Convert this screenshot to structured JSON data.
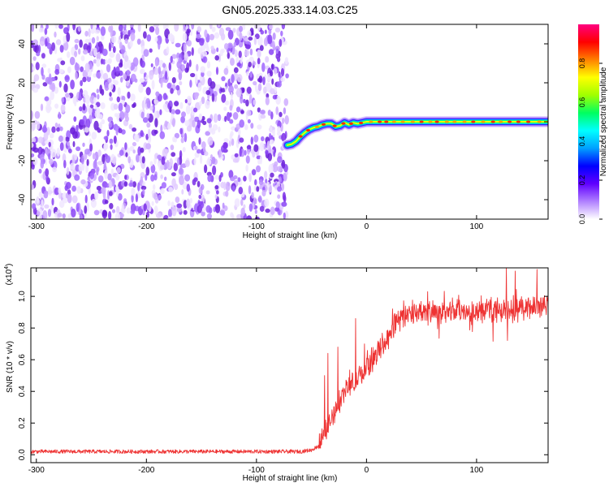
{
  "title": "GN05.2025.333.14.03.C25",
  "chart_data": [
    {
      "type": "heatmap",
      "xlabel": "Height of straight line (km)",
      "ylabel": "Frequency (Hz)",
      "xlim": [
        -305,
        165
      ],
      "ylim": [
        -50,
        50
      ],
      "x_ticks": [
        -300,
        -200,
        -100,
        0,
        100
      ],
      "y_ticks": [
        -40,
        -20,
        0,
        20,
        40
      ],
      "noise_region_x": [
        -305,
        -72
      ],
      "ridge": {
        "x": [
          -72,
          -68,
          -64,
          -60,
          -56,
          -52,
          -48,
          -44,
          -40,
          -36,
          -32,
          -28,
          -24,
          -20,
          -16,
          -12,
          -8,
          -4,
          0,
          20,
          50,
          80,
          110,
          140,
          165
        ],
        "y": [
          -12,
          -11.5,
          -10,
          -7.5,
          -5.5,
          -4,
          -3,
          -2.5,
          -1.5,
          -1,
          -1,
          -2.5,
          -2,
          -0.5,
          -1.5,
          -0.5,
          -1,
          -0.5,
          0,
          0,
          0,
          0,
          0,
          0,
          0
        ]
      },
      "colorbar": {
        "label": "Normalized spectral amplitude",
        "range": [
          0,
          1
        ],
        "ticks": [
          "0.0",
          "0.2",
          "0.4",
          "0.6",
          "0.8"
        ],
        "tick_values": [
          0,
          0.2,
          0.4,
          0.6,
          0.8
        ],
        "colors": [
          "#ffffff",
          "#b080ff",
          "#6000ff",
          "#0000ff",
          "#00a0ff",
          "#00ffff",
          "#00ff60",
          "#a0ff00",
          "#ffff00",
          "#ff8000",
          "#ff0000",
          "#ff0080"
        ]
      }
    },
    {
      "type": "line",
      "xlabel": "Height of straight line (km)",
      "ylabel": "SNR (10 * v/v)",
      "scale_note": "(x10",
      "scale_exp": "4",
      "scale_close": ")",
      "xlim": [
        -305,
        165
      ],
      "ylim": [
        -0.05,
        1.18
      ],
      "x_ticks": [
        -300,
        -200,
        -100,
        0,
        100
      ],
      "y_ticks": [
        "0.0",
        "0.2",
        "0.4",
        "0.6",
        "0.8",
        "1.0"
      ],
      "y_tick_values": [
        0,
        0.2,
        0.4,
        0.6,
        0.8,
        1.0
      ],
      "line_color": "#ee3333",
      "profile": {
        "x": [
          -305,
          -100,
          -60,
          -50,
          -45,
          -40,
          -35,
          -30,
          -25,
          -20,
          -15,
          -10,
          -5,
          0,
          5,
          10,
          15,
          20,
          25,
          30,
          40,
          60,
          80,
          100,
          120,
          140,
          165
        ],
        "y": [
          0.02,
          0.02,
          0.02,
          0.03,
          0.05,
          0.1,
          0.18,
          0.26,
          0.33,
          0.4,
          0.44,
          0.46,
          0.5,
          0.55,
          0.6,
          0.65,
          0.7,
          0.75,
          0.82,
          0.87,
          0.9,
          0.9,
          0.9,
          0.9,
          0.91,
          0.92,
          0.95
        ]
      },
      "spikes": [
        {
          "x": -38,
          "y": 0.5
        },
        {
          "x": -35,
          "y": 0.64
        },
        {
          "x": -26,
          "y": 0.68
        },
        {
          "x": -10,
          "y": 0.86
        },
        {
          "x": -2,
          "y": 0.7
        },
        {
          "x": 127,
          "y": 1.18
        },
        {
          "x": 135,
          "y": 1.16
        },
        {
          "x": 155,
          "y": 1.17
        }
      ]
    }
  ]
}
